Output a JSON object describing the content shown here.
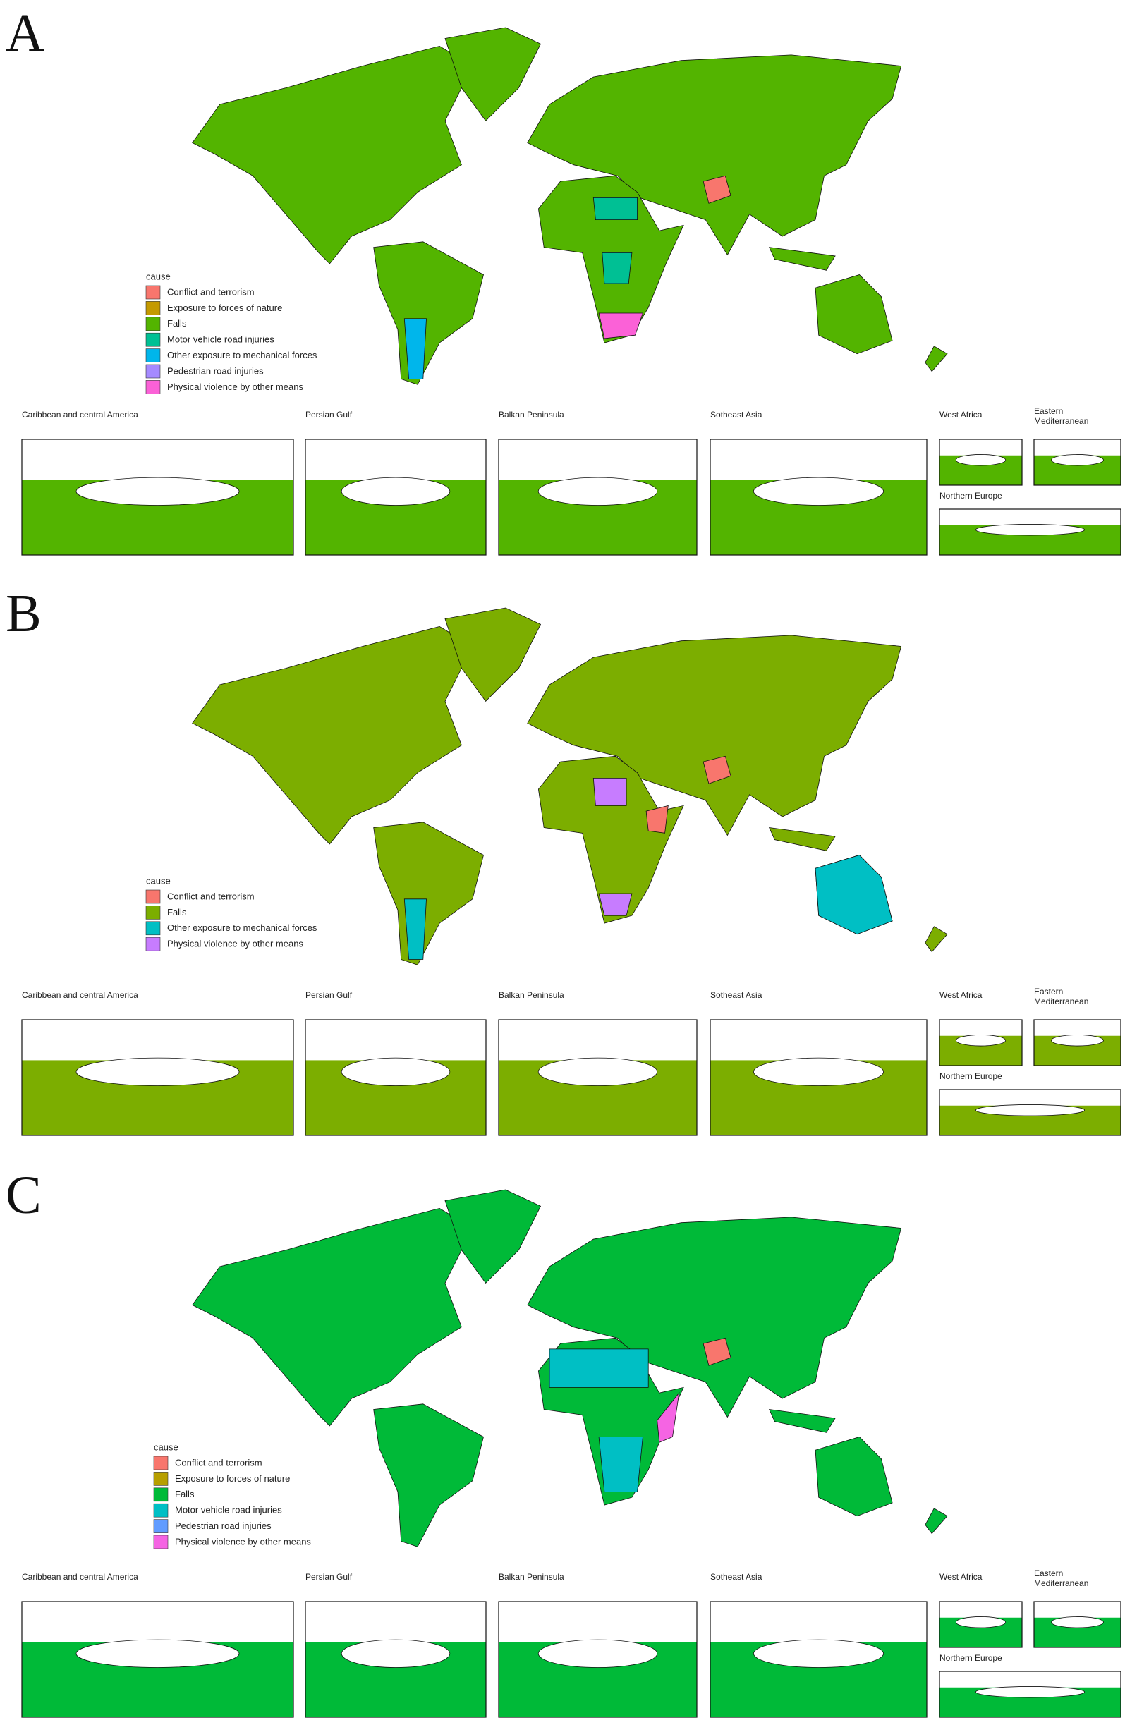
{
  "panels": [
    {
      "label": "A",
      "legend": {
        "title": "cause",
        "items": [
          {
            "name": "Conflict and terrorism",
            "color": "#F8766D"
          },
          {
            "name": "Exposure to forces of nature",
            "color": "#C49A00"
          },
          {
            "name": "Falls",
            "color": "#53B400"
          },
          {
            "name": "Motor vehicle road injuries",
            "color": "#00C094"
          },
          {
            "name": "Other exposure to mechanical forces",
            "color": "#00B6EB"
          },
          {
            "name": "Pedestrian road injuries",
            "color": "#A58AFF"
          },
          {
            "name": "Physical violence by other means",
            "color": "#FB61D7"
          }
        ]
      },
      "insets": [
        "Caribbean and central America",
        "Persian Gulf",
        "Balkan Peninsula",
        "Sotheast Asia",
        "West Africa",
        "Eastern Mediterranean",
        "Northern Europe"
      ]
    },
    {
      "label": "B",
      "legend": {
        "title": "cause",
        "items": [
          {
            "name": "Conflict and terrorism",
            "color": "#F8766D"
          },
          {
            "name": "Falls",
            "color": "#7CAE00"
          },
          {
            "name": "Other exposure to mechanical forces",
            "color": "#00BFC4"
          },
          {
            "name": "Physical violence by other means",
            "color": "#C77CFF"
          }
        ]
      },
      "insets": [
        "Caribbean and central America",
        "Persian Gulf",
        "Balkan Peninsula",
        "Sotheast Asia",
        "West Africa",
        "Eastern Mediterranean",
        "Northern Europe"
      ]
    },
    {
      "label": "C",
      "legend": {
        "title": "cause",
        "items": [
          {
            "name": "Conflict and terrorism",
            "color": "#F8766D"
          },
          {
            "name": "Exposure to forces of nature",
            "color": "#B79F00"
          },
          {
            "name": "Falls",
            "color": "#00BA38"
          },
          {
            "name": "Motor vehicle road injuries",
            "color": "#00BFC4"
          },
          {
            "name": "Pedestrian road injuries",
            "color": "#619CFF"
          },
          {
            "name": "Physical violence by other means",
            "color": "#F564E3"
          }
        ]
      },
      "insets": [
        "Caribbean and central America",
        "Persian Gulf",
        "Balkan Peninsula",
        "Sotheast Asia",
        "West Africa",
        "Eastern Mediterranean",
        "Northern Europe"
      ]
    }
  ]
}
